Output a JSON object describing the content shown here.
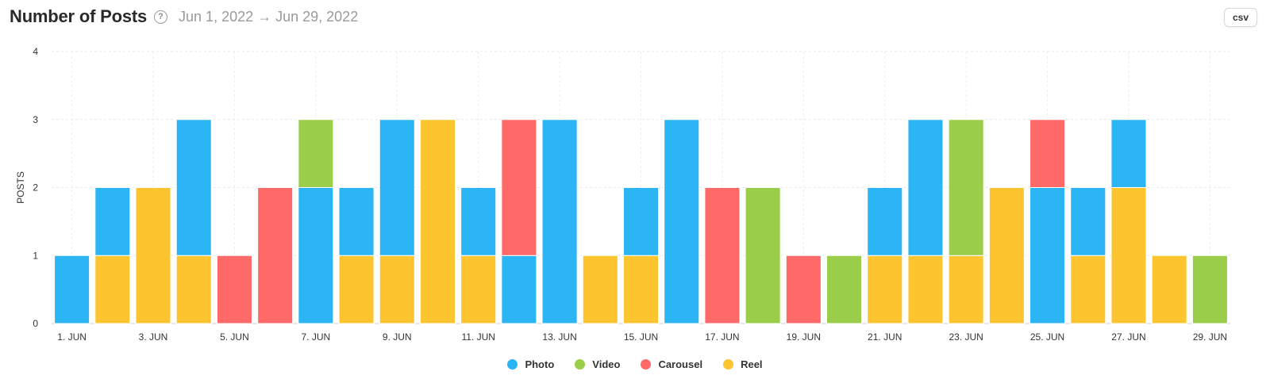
{
  "header": {
    "title": "Number of Posts",
    "date_range": "Jun 1, 2022 → Jun 29, 2022",
    "csv_label": "csv"
  },
  "colors": {
    "Photo": "#2cb5f5",
    "Video": "#9acd4a",
    "Carousel": "#ff6a69",
    "Reel": "#fcc52f"
  },
  "chart_data": {
    "type": "bar",
    "stacked": true,
    "ylabel": "POSTS",
    "xlabel": "",
    "ylim": [
      0,
      4
    ],
    "yticks": [
      "0",
      "1",
      "2",
      "3",
      "4"
    ],
    "categories": [
      "1. JUN",
      "2. JUN",
      "3. JUN",
      "4. JUN",
      "5. JUN",
      "6. JUN",
      "7. JUN",
      "8. JUN",
      "9. JUN",
      "10. JUN",
      "11. JUN",
      "12. JUN",
      "13. JUN",
      "14. JUN",
      "15. JUN",
      "16. JUN",
      "17. JUN",
      "18. JUN",
      "19. JUN",
      "20. JUN",
      "21. JUN",
      "22. JUN",
      "23. JUN",
      "24. JUN",
      "25. JUN",
      "26. JUN",
      "27. JUN",
      "28. JUN",
      "29. JUN"
    ],
    "xtick_labels": [
      "1. JUN",
      "3. JUN",
      "5. JUN",
      "7. JUN",
      "9. JUN",
      "11. JUN",
      "13. JUN",
      "15. JUN",
      "17. JUN",
      "19. JUN",
      "21. JUN",
      "23. JUN",
      "25. JUN",
      "27. JUN",
      "29. JUN"
    ],
    "series": [
      {
        "name": "Reel",
        "values": [
          0,
          1,
          2,
          1,
          0,
          0,
          0,
          1,
          1,
          3,
          1,
          0,
          0,
          1,
          1,
          0,
          0,
          0,
          0,
          0,
          1,
          1,
          1,
          2,
          0,
          1,
          2,
          1,
          0
        ]
      },
      {
        "name": "Photo",
        "values": [
          1,
          1,
          0,
          2,
          0,
          0,
          2,
          1,
          2,
          0,
          1,
          1,
          3,
          0,
          1,
          3,
          0,
          0,
          0,
          0,
          1,
          2,
          0,
          0,
          2,
          1,
          1,
          0,
          0
        ]
      },
      {
        "name": "Video",
        "values": [
          0,
          0,
          0,
          0,
          0,
          0,
          1,
          0,
          0,
          0,
          0,
          0,
          0,
          0,
          0,
          0,
          0,
          2,
          0,
          1,
          0,
          0,
          2,
          0,
          0,
          0,
          0,
          0,
          1
        ]
      },
      {
        "name": "Carousel",
        "values": [
          0,
          0,
          0,
          0,
          1,
          2,
          0,
          0,
          0,
          0,
          0,
          2,
          0,
          0,
          0,
          0,
          2,
          0,
          1,
          0,
          0,
          0,
          0,
          0,
          1,
          0,
          0,
          0,
          0
        ]
      }
    ],
    "legend": [
      "Photo",
      "Video",
      "Carousel",
      "Reel"
    ],
    "legend_position": "bottom",
    "grid": true
  }
}
